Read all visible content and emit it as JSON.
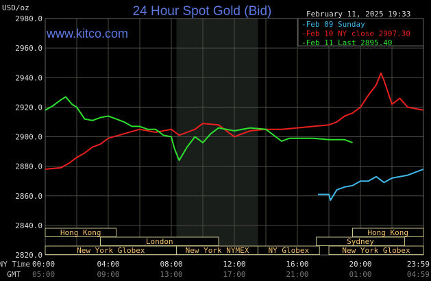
{
  "chart_data": {
    "type": "line",
    "title": "24 Hour Spot Gold (Bid)",
    "ylabel": "USD/oz",
    "watermark": "www.kitco.com",
    "timestamp": "February 11, 2025 19:33",
    "ylim": [
      2820,
      2980
    ],
    "yticks": [
      "2980.0",
      "2960.0",
      "2940.0",
      "2920.0",
      "2900.0",
      "2880.0",
      "2860.0",
      "2840.0",
      "2820.0"
    ],
    "xlim_hours": [
      0,
      24
    ],
    "x_row_labels": {
      "ny": "NY Time",
      "gmt": "GMT"
    },
    "xticks": [
      {
        "h": 0,
        "ny": "00:00",
        "gmt": "05:00"
      },
      {
        "h": 4,
        "ny": "04:00",
        "gmt": "09:00"
      },
      {
        "h": 8,
        "ny": "08:00",
        "gmt": "13:00"
      },
      {
        "h": 12,
        "ny": "12:00",
        "gmt": "17:00"
      },
      {
        "h": 16,
        "ny": "16:00",
        "gmt": "21:00"
      },
      {
        "h": 20,
        "ny": "20:00",
        "gmt": "01:00"
      },
      {
        "h": 23.99,
        "ny": "23:59",
        "gmt": "04:59"
      }
    ],
    "highlight_hours": [
      8.33,
      13.5
    ],
    "legend": [
      {
        "label": "Feb 09 Sunday",
        "color": "#3fb8e8"
      },
      {
        "label": "Feb 10 NY close 2907.30",
        "color": "#e8201e"
      },
      {
        "label": "Feb 11 Last 2895.40",
        "color": "#2ee02e"
      }
    ],
    "series": [
      {
        "name": "Feb 10",
        "color": "#e8201e",
        "points": [
          [
            0,
            2878
          ],
          [
            1,
            2879
          ],
          [
            1.5,
            2882
          ],
          [
            2,
            2886
          ],
          [
            2.5,
            2889
          ],
          [
            3,
            2893
          ],
          [
            3.5,
            2895
          ],
          [
            4,
            2899
          ],
          [
            5,
            2902
          ],
          [
            6,
            2905
          ],
          [
            7,
            2903
          ],
          [
            8,
            2905
          ],
          [
            8.5,
            2901
          ],
          [
            9,
            2903
          ],
          [
            9.5,
            2905
          ],
          [
            10,
            2909
          ],
          [
            11,
            2908
          ],
          [
            11.5,
            2904
          ],
          [
            12,
            2900
          ],
          [
            12.5,
            2902
          ],
          [
            13,
            2904
          ],
          [
            14,
            2905
          ],
          [
            15,
            2905
          ],
          [
            16,
            2906
          ],
          [
            17,
            2907
          ],
          [
            18,
            2908
          ],
          [
            18.5,
            2910
          ],
          [
            19,
            2914
          ],
          [
            19.5,
            2916
          ],
          [
            20,
            2920
          ],
          [
            20.5,
            2928
          ],
          [
            21,
            2935
          ],
          [
            21.3,
            2943
          ],
          [
            21.5,
            2938
          ],
          [
            22,
            2922
          ],
          [
            22.5,
            2926
          ],
          [
            23,
            2920
          ],
          [
            23.99,
            2918
          ]
        ]
      },
      {
        "name": "Feb 11",
        "color": "#2ee02e",
        "points": [
          [
            0,
            2918
          ],
          [
            0.5,
            2921
          ],
          [
            1,
            2925
          ],
          [
            1.3,
            2927
          ],
          [
            1.7,
            2922
          ],
          [
            2,
            2920
          ],
          [
            2.5,
            2912
          ],
          [
            3,
            2911
          ],
          [
            3.5,
            2913
          ],
          [
            4,
            2914
          ],
          [
            4.5,
            2912
          ],
          [
            5,
            2910
          ],
          [
            5.5,
            2907
          ],
          [
            6,
            2907
          ],
          [
            6.5,
            2905
          ],
          [
            7,
            2905
          ],
          [
            7.5,
            2901
          ],
          [
            8,
            2900
          ],
          [
            8.2,
            2892
          ],
          [
            8.5,
            2884
          ],
          [
            9,
            2893
          ],
          [
            9.5,
            2900
          ],
          [
            10,
            2896
          ],
          [
            10.5,
            2902
          ],
          [
            11,
            2906
          ],
          [
            12,
            2904
          ],
          [
            13,
            2906
          ],
          [
            14,
            2905
          ],
          [
            14.5,
            2901
          ],
          [
            15,
            2897
          ],
          [
            15.5,
            2899
          ],
          [
            16,
            2899
          ],
          [
            17,
            2899
          ],
          [
            18,
            2898
          ],
          [
            19,
            2898
          ],
          [
            19.5,
            2896
          ]
        ]
      },
      {
        "name": "Feb 09",
        "color": "#3fb8e8",
        "points": [
          [
            17.3,
            2861
          ],
          [
            18,
            2861
          ],
          [
            18.1,
            2857
          ],
          [
            18.5,
            2864
          ],
          [
            19,
            2866
          ],
          [
            19.5,
            2867
          ],
          [
            20,
            2870
          ],
          [
            20.5,
            2870
          ],
          [
            21,
            2873
          ],
          [
            21.5,
            2869
          ],
          [
            22,
            2872
          ],
          [
            23,
            2874
          ],
          [
            23.99,
            2878
          ]
        ]
      }
    ],
    "sessions": [
      {
        "label": "Hong Kong",
        "row": 0,
        "start": 0,
        "end": 4.5
      },
      {
        "label": "Hong Kong",
        "row": 0,
        "start": 19.5,
        "end": 24
      },
      {
        "label": "London",
        "row": 1,
        "start": 3.5,
        "end": 11
      },
      {
        "label": "Sydney",
        "row": 1,
        "start": 17.2,
        "end": 22.8
      },
      {
        "label": "New York Globex",
        "row": 2,
        "start": 0,
        "end": 8.33
      },
      {
        "label": "New York NYMEX",
        "row": 2,
        "start": 8.33,
        "end": 13.5
      },
      {
        "label": "NY Globex",
        "row": 2,
        "start": 13.5,
        "end": 17.4
      },
      {
        "label": "New York Globex",
        "row": 2,
        "start": 18,
        "end": 24
      }
    ]
  }
}
